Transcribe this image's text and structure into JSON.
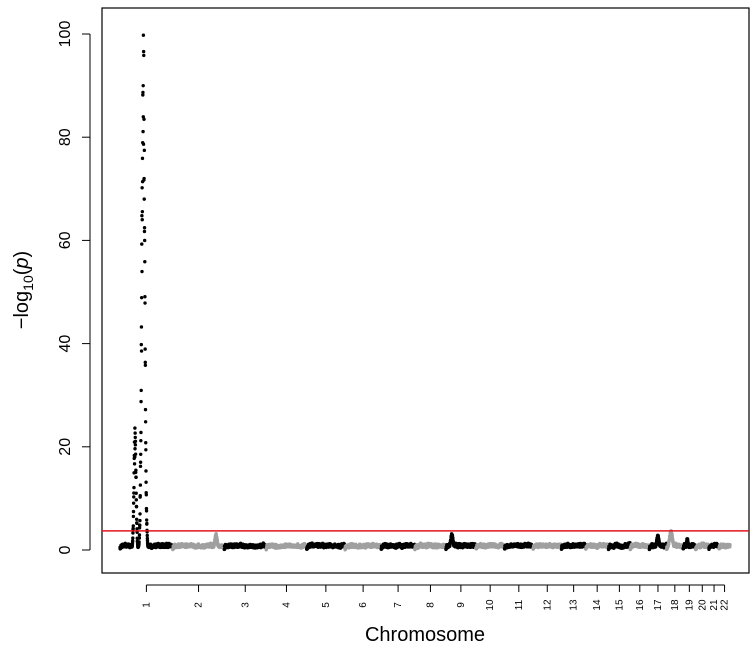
{
  "chart_data": {
    "type": "scatter",
    "title": "",
    "xlabel": "Chromosome",
    "ylabel": {
      "prefix": "−log",
      "subscript": "10",
      "open": "(",
      "variable": "p",
      "close": ")"
    },
    "ylim": [
      0,
      105
    ],
    "yticks": [
      0,
      20,
      40,
      60,
      80,
      100
    ],
    "threshold_line": {
      "value": 3.7,
      "color": "#e0141b"
    },
    "colors": {
      "odd": "#000000",
      "even": "#a0a0a0",
      "frame": "#000000"
    },
    "grid": false,
    "legend": "none",
    "chromosomes": [
      {
        "label": "1",
        "start": 0,
        "end": 249.3
      },
      {
        "label": "2",
        "start": 249.3,
        "end": 492.5
      },
      {
        "label": "3",
        "start": 492.5,
        "end": 690.5
      },
      {
        "label": "4",
        "start": 690.5,
        "end": 881.7
      },
      {
        "label": "5",
        "start": 881.7,
        "end": 1062.6
      },
      {
        "label": "6",
        "start": 1062.6,
        "end": 1233.7
      },
      {
        "label": "7",
        "start": 1233.7,
        "end": 1392.8
      },
      {
        "label": "8",
        "start": 1392.8,
        "end": 1539.2
      },
      {
        "label": "9",
        "start": 1539.2,
        "end": 1680.4
      },
      {
        "label": "10",
        "start": 1680.4,
        "end": 1815.9
      },
      {
        "label": "11",
        "start": 1815.9,
        "end": 1950.9
      },
      {
        "label": "12",
        "start": 1950.9,
        "end": 2084.7
      },
      {
        "label": "13",
        "start": 2084.7,
        "end": 2199.8
      },
      {
        "label": "14",
        "start": 2199.8,
        "end": 2307.1
      },
      {
        "label": "15",
        "start": 2307.1,
        "end": 2409.6
      },
      {
        "label": "16",
        "start": 2409.6,
        "end": 2499.9
      },
      {
        "label": "17",
        "start": 2499.9,
        "end": 2581.1
      },
      {
        "label": "18",
        "start": 2581.1,
        "end": 2659.2
      },
      {
        "label": "19",
        "start": 2659.2,
        "end": 2718.3
      },
      {
        "label": "20",
        "start": 2718.3,
        "end": 2781.3
      },
      {
        "label": "21",
        "start": 2781.3,
        "end": 2829.4
      },
      {
        "label": "22",
        "start": 2829.4,
        "end": 2880.7
      }
    ],
    "peaks": [
      {
        "chr": "1",
        "pos": 110,
        "value": 101.5,
        "width": 7
      },
      {
        "chr": "1",
        "pos": 71,
        "value": 24.5,
        "width": 5
      },
      {
        "chr": "1",
        "pos": 104,
        "value": 25.8,
        "width": 4
      },
      {
        "chr": "2",
        "pos": 204,
        "value": 3.2,
        "width": 6
      },
      {
        "chr": "9",
        "pos": 28,
        "value": 3.3,
        "width": 6
      },
      {
        "chr": "18",
        "pos": 21,
        "value": 3.8,
        "width": 8
      },
      {
        "chr": "17",
        "pos": 40,
        "value": 2.9,
        "width": 6
      },
      {
        "chr": "19",
        "pos": 20,
        "value": 2.4,
        "width": 4
      }
    ]
  }
}
